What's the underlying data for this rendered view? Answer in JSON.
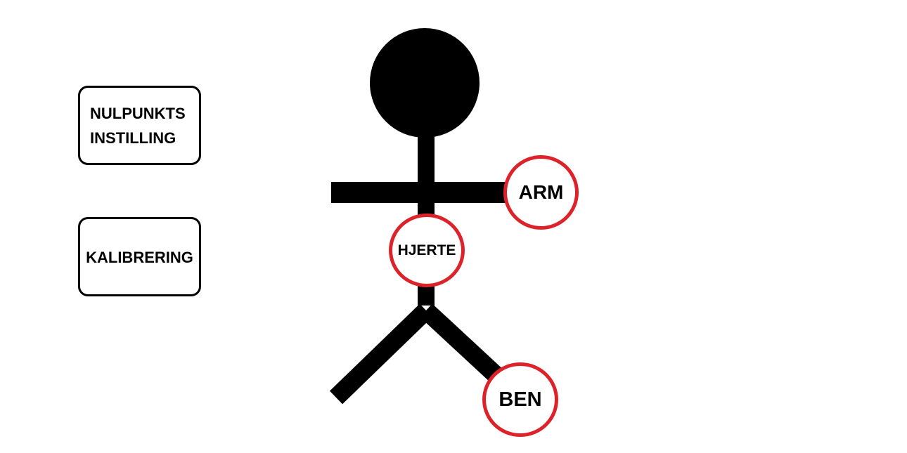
{
  "buttons": {
    "zero_point": {
      "line1": "NULPUNKTS",
      "line2": "INSTILLING"
    },
    "calibration": {
      "label": "KALIBRERING"
    }
  },
  "sensors": {
    "arm": {
      "label": "ARM"
    },
    "heart": {
      "label": "HJERTE"
    },
    "leg": {
      "label": "BEN"
    }
  },
  "colors": {
    "sensor_ring": "#dd2229",
    "figure": "#000000",
    "background": "#ffffff"
  },
  "icons": {
    "figure": "stick-figure-icon"
  }
}
